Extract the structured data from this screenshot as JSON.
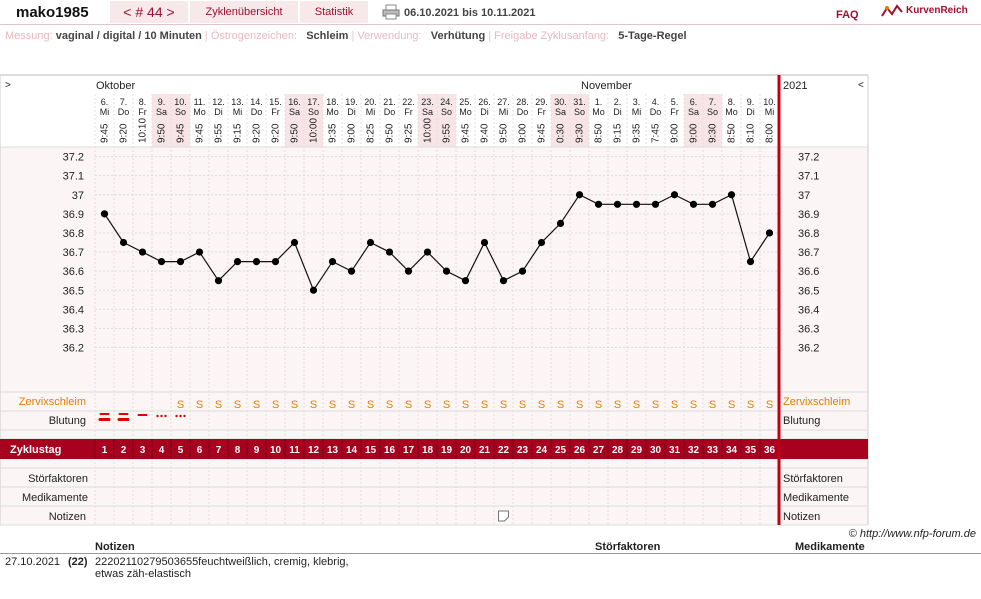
{
  "header": {
    "username": "mako1985",
    "cycle_nav": "< # 44 >",
    "tab_overview": "Zyklenübersicht",
    "tab_stats": "Statistik",
    "date_range": "06.10.2021 bis 10.11.2021",
    "faq": "FAQ",
    "logo": "KurvenReich"
  },
  "settings": {
    "messung_label": "Messung:",
    "messung_value": "vaginal / digital / 10 Minuten",
    "oestrogen_label": "Östrogenzeichen:",
    "oestrogen_value": "Schleim",
    "verwendung_label": "Verwendung:",
    "verwendung_value": "Verhütung",
    "freigabe_label": "Freigabe Zyklusanfang:",
    "freigabe_value": "5-Tage-Regel"
  },
  "chart_data": {
    "type": "line",
    "nav_left": ">",
    "nav_right": "<",
    "month_labels": [
      "Oktober",
      "November"
    ],
    "year": "2021",
    "dates": [
      "6.",
      "7.",
      "8.",
      "9.",
      "10.",
      "11.",
      "12.",
      "13.",
      "14.",
      "15.",
      "16.",
      "17.",
      "18.",
      "19.",
      "20.",
      "21.",
      "22.",
      "23.",
      "24.",
      "25.",
      "26.",
      "27.",
      "28.",
      "29.",
      "30.",
      "31.",
      "1.",
      "2.",
      "3.",
      "4.",
      "5.",
      "6.",
      "7.",
      "8.",
      "9.",
      "10."
    ],
    "weekdays": [
      "Mi",
      "Do",
      "Fr",
      "Sa",
      "So",
      "Mo",
      "Di",
      "Mi",
      "Do",
      "Fr",
      "Sa",
      "So",
      "Mo",
      "Di",
      "Mi",
      "Do",
      "Fr",
      "Sa",
      "So",
      "Mo",
      "Di",
      "Mi",
      "Do",
      "Fr",
      "Sa",
      "So",
      "Mo",
      "Di",
      "Mi",
      "Do",
      "Fr",
      "Sa",
      "So",
      "Mo",
      "Di",
      "Mi"
    ],
    "times": [
      "9:45",
      "9:20",
      "10:10",
      "9:50",
      "9:45",
      "9:45",
      "9:55",
      "9:15",
      "9:20",
      "9:20",
      "9:50",
      "10:00",
      "9:35",
      "9:00",
      "8:25",
      "9:50",
      "9:25",
      "10:00",
      "9:55",
      "9:45",
      "9:40",
      "9:50",
      "9:00",
      "9:45",
      "0:30",
      "9:30",
      "8:50",
      "9:15",
      "9:35",
      "7:45",
      "9:00",
      "9:00",
      "9:30",
      "8:50",
      "8:10",
      "8:00"
    ],
    "x": [
      1,
      2,
      3,
      4,
      5,
      6,
      7,
      8,
      9,
      10,
      11,
      12,
      13,
      14,
      15,
      16,
      17,
      18,
      19,
      20,
      21,
      22,
      23,
      24,
      25,
      26,
      27,
      28,
      29,
      30,
      31,
      32,
      33,
      34,
      35,
      36
    ],
    "y": [
      36.9,
      36.75,
      36.7,
      36.65,
      36.65,
      36.7,
      36.55,
      36.65,
      36.65,
      36.65,
      36.75,
      36.5,
      36.65,
      36.6,
      36.75,
      36.7,
      36.6,
      36.7,
      36.6,
      36.55,
      36.75,
      36.55,
      36.6,
      36.75,
      36.85,
      37.0,
      36.95,
      36.95,
      36.95,
      36.95,
      37.0,
      36.95,
      36.95,
      37.0,
      36.65,
      36.8
    ],
    "yticks": [
      "37.2",
      "37.1",
      "37",
      "36.9",
      "36.8",
      "36.7",
      "36.6",
      "36.5",
      "36.4",
      "36.3",
      "36.2"
    ],
    "ylim": [
      36.15,
      37.25
    ],
    "cervix_label": "Zervixschleim",
    "cervix": [
      "",
      "",
      "",
      "",
      "S",
      "S",
      "S",
      "S",
      "S",
      "S",
      "S",
      "S",
      "S",
      "S",
      "S",
      "S",
      "S",
      "S",
      "S",
      "S",
      "S",
      "S",
      "S",
      "S",
      "S",
      "S",
      "S",
      "S",
      "S",
      "S",
      "S",
      "S",
      "S",
      "S",
      "S",
      "S"
    ],
    "bleeding_label": "Blutung",
    "bleeding": [
      "strong",
      "strong",
      "medium",
      "spotting",
      "spotting",
      "",
      "",
      "",
      "",
      "",
      "",
      "",
      "",
      "",
      "",
      "",
      "",
      "",
      "",
      "",
      "",
      "",
      "",
      "",
      "",
      "",
      "",
      "",
      "",
      "",
      "",
      "",
      "",
      "",
      "",
      ""
    ],
    "cycle_day_label": "Zyklustag",
    "cycle_days": [
      "1",
      "2",
      "3",
      "4",
      "5",
      "6",
      "7",
      "8",
      "9",
      "10",
      "11",
      "12",
      "13",
      "14",
      "15",
      "16",
      "17",
      "18",
      "19",
      "20",
      "21",
      "22",
      "23",
      "24",
      "25",
      "26",
      "27",
      "28",
      "29",
      "30",
      "31",
      "32",
      "33",
      "34",
      "35",
      "36"
    ],
    "stoer_label": "Störfaktoren",
    "medi_label": "Medikamente",
    "notizen_label": "Notizen",
    "note_icon_day": 22,
    "copyright": "© http://www.nfp-forum.de",
    "colors": {
      "accent": "#a8001f",
      "line": "#b81020",
      "cervix": "#e08000",
      "bleeding": "#e00000",
      "weekend": "#f6e4e6"
    }
  },
  "notes": {
    "headers": {
      "notizen": "Notizen",
      "stoer": "Störfaktoren",
      "medi": "Medikamente"
    },
    "rows": [
      {
        "date": "27.10.2021",
        "day": "(22)",
        "text1": "22202110279503655feuchtweißlich, cremig, klebrig,",
        "text2": "etwas zäh-elastisch"
      }
    ]
  }
}
